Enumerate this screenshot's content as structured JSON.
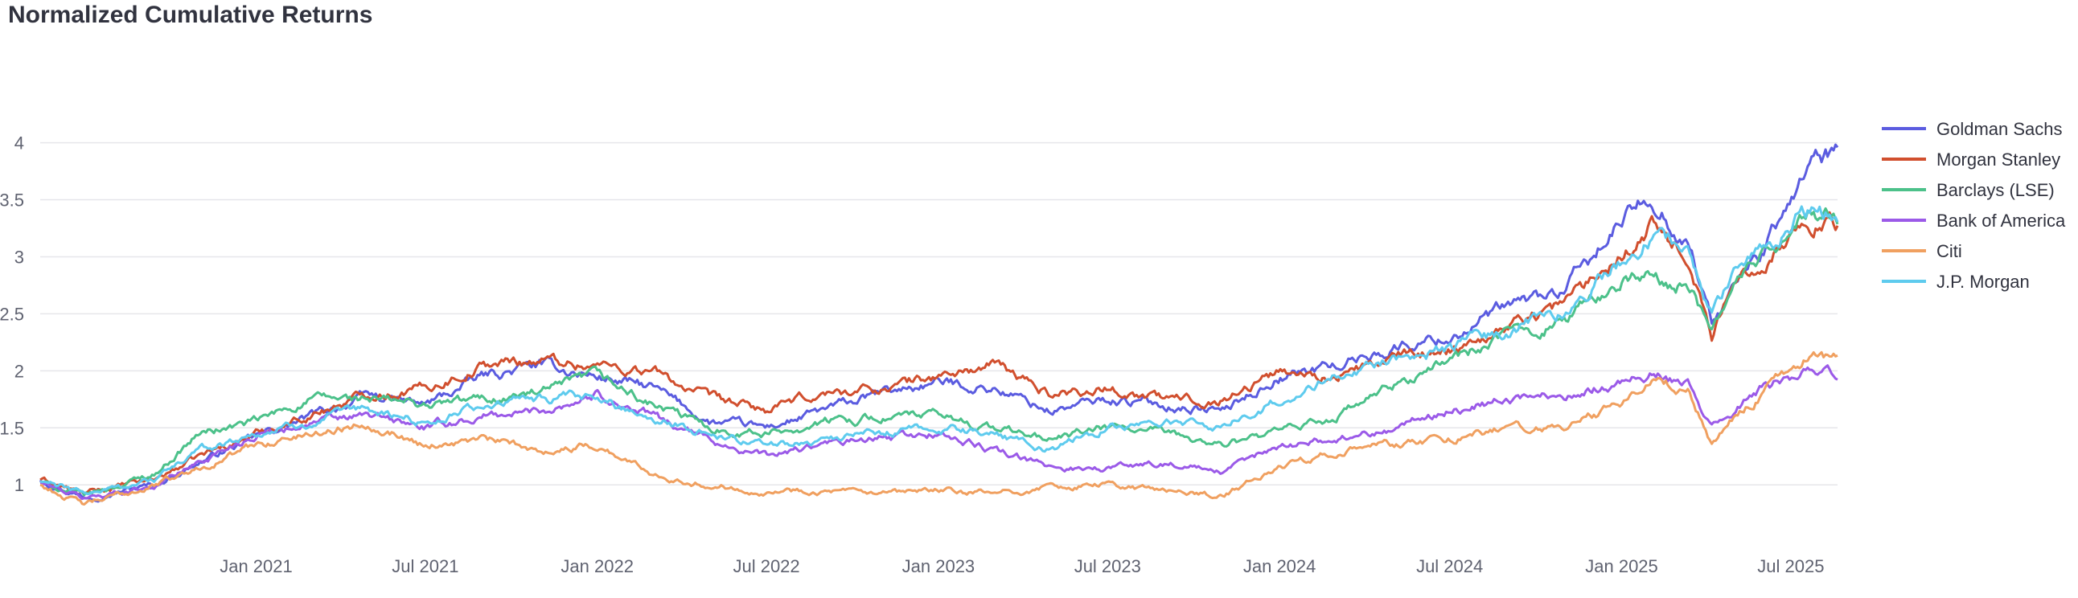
{
  "chart_data": {
    "type": "line",
    "title": "Normalized Cumulative Returns",
    "xlabel": "",
    "ylabel": "",
    "x_range": [
      "2020-05-15",
      "2025-08-20"
    ],
    "ylim": [
      0.6,
      4.3
    ],
    "y_ticks": [
      1,
      1.5,
      2,
      2.5,
      3,
      3.5,
      4
    ],
    "y_tick_labels": [
      "1",
      "1.5",
      "2",
      "2.5",
      "3",
      "3.5",
      "4"
    ],
    "x_ticks": [
      "2021-01-01",
      "2021-07-01",
      "2022-01-01",
      "2022-07-01",
      "2023-01-01",
      "2023-07-01",
      "2024-01-01",
      "2024-07-01",
      "2025-01-01",
      "2025-07-01"
    ],
    "x_tick_labels": [
      "Jan 2021",
      "Jul 2021",
      "Jan 2022",
      "Jul 2022",
      "Jan 2023",
      "Jul 2023",
      "Jan 2024",
      "Jul 2024",
      "Jan 2025",
      "Jul 2025"
    ],
    "grid": "horizontal",
    "legend_position": "right",
    "x": [
      "2020-05-15",
      "2020-07-01",
      "2020-09-15",
      "2020-11-01",
      "2021-01-01",
      "2021-03-01",
      "2021-05-01",
      "2021-07-01",
      "2021-09-01",
      "2021-11-01",
      "2022-01-01",
      "2022-03-01",
      "2022-05-01",
      "2022-07-01",
      "2022-09-01",
      "2022-11-01",
      "2023-01-01",
      "2023-03-01",
      "2023-05-01",
      "2023-07-01",
      "2023-09-01",
      "2023-11-01",
      "2024-01-01",
      "2024-03-01",
      "2024-05-01",
      "2024-07-01",
      "2024-09-01",
      "2024-11-01",
      "2025-01-01",
      "2025-02-01",
      "2025-03-15",
      "2025-04-08",
      "2025-05-01",
      "2025-06-01",
      "2025-07-01",
      "2025-07-20",
      "2025-08-20"
    ],
    "series": [
      {
        "name": "Goldman Sachs",
        "color": "#5b5ce0",
        "values": [
          1.05,
          0.9,
          1.0,
          1.2,
          1.42,
          1.6,
          1.78,
          1.7,
          1.95,
          2.05,
          1.95,
          1.85,
          1.55,
          1.5,
          1.65,
          1.8,
          1.9,
          1.85,
          1.65,
          1.75,
          1.7,
          1.65,
          1.95,
          2.05,
          2.2,
          2.3,
          2.55,
          2.7,
          3.3,
          3.55,
          3.1,
          2.4,
          2.75,
          3.05,
          3.45,
          3.85,
          3.9
        ]
      },
      {
        "name": "Morgan Stanley",
        "color": "#d14f2e",
        "values": [
          1.05,
          0.92,
          1.05,
          1.25,
          1.45,
          1.62,
          1.8,
          1.85,
          2.05,
          2.1,
          2.05,
          2.0,
          1.75,
          1.65,
          1.8,
          1.85,
          1.95,
          2.05,
          1.8,
          1.85,
          1.75,
          1.75,
          2.0,
          1.95,
          2.1,
          2.2,
          2.4,
          2.6,
          3.05,
          3.3,
          3.0,
          2.3,
          2.75,
          3.0,
          3.2,
          3.3,
          3.3
        ]
      },
      {
        "name": "Barclays (LSE)",
        "color": "#4cc18a",
        "values": [
          1.02,
          0.9,
          1.1,
          1.45,
          1.55,
          1.75,
          1.75,
          1.7,
          1.75,
          1.8,
          1.95,
          1.7,
          1.5,
          1.45,
          1.55,
          1.6,
          1.6,
          1.5,
          1.4,
          1.5,
          1.45,
          1.35,
          1.45,
          1.6,
          1.85,
          2.1,
          2.3,
          2.45,
          2.8,
          2.8,
          2.75,
          2.3,
          2.8,
          3.0,
          3.2,
          3.35,
          3.35
        ]
      },
      {
        "name": "Bank of America",
        "color": "#9b5ae8",
        "values": [
          1.02,
          0.88,
          1.0,
          1.2,
          1.45,
          1.55,
          1.6,
          1.5,
          1.6,
          1.65,
          1.8,
          1.6,
          1.4,
          1.25,
          1.35,
          1.4,
          1.45,
          1.3,
          1.15,
          1.15,
          1.2,
          1.1,
          1.35,
          1.4,
          1.5,
          1.65,
          1.75,
          1.8,
          1.9,
          2.0,
          1.85,
          1.5,
          1.65,
          1.85,
          1.95,
          2.05,
          1.95
        ]
      },
      {
        "name": "Citi",
        "color": "#f0a060",
        "values": [
          1.0,
          0.82,
          1.0,
          1.15,
          1.35,
          1.45,
          1.55,
          1.35,
          1.4,
          1.3,
          1.35,
          1.1,
          1.0,
          0.95,
          0.95,
          0.9,
          0.95,
          0.92,
          0.98,
          1.0,
          0.95,
          0.9,
          1.15,
          1.3,
          1.35,
          1.4,
          1.5,
          1.5,
          1.7,
          1.9,
          1.85,
          1.35,
          1.6,
          1.8,
          2.0,
          2.15,
          2.1
        ]
      },
      {
        "name": "J.P. Morgan",
        "color": "#5ecbee",
        "values": [
          1.03,
          0.92,
          1.05,
          1.3,
          1.45,
          1.55,
          1.65,
          1.55,
          1.7,
          1.75,
          1.75,
          1.6,
          1.45,
          1.35,
          1.4,
          1.45,
          1.5,
          1.45,
          1.3,
          1.5,
          1.55,
          1.5,
          1.75,
          1.95,
          2.1,
          2.2,
          2.35,
          2.55,
          2.95,
          3.15,
          3.05,
          2.5,
          2.85,
          3.05,
          3.3,
          3.4,
          3.4
        ]
      }
    ]
  }
}
